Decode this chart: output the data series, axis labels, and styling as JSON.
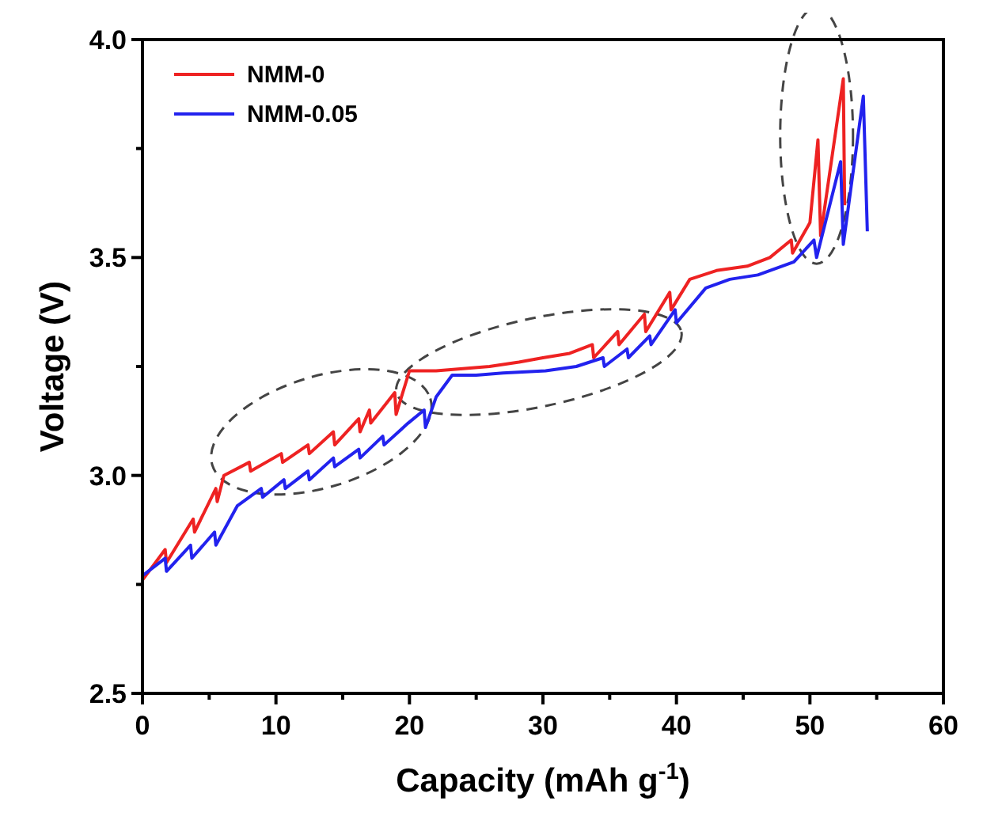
{
  "chart_data": {
    "type": "line",
    "xlabel": "Capacity (mAh g$^{-1}$)",
    "ylabel": "Voltage (V)",
    "xlim": [
      0,
      60
    ],
    "ylim": [
      2.5,
      4.0
    ],
    "xticks": [
      0,
      {
        "value": 5,
        "label": null
      },
      10,
      {
        "value": 15,
        "label": null
      },
      20,
      {
        "value": 25,
        "label": null
      },
      30,
      {
        "value": 35,
        "label": null
      },
      40,
      {
        "value": 45,
        "label": null
      },
      50,
      {
        "value": 55,
        "label": null
      },
      60
    ],
    "yticks": [
      2.5,
      {
        "value": 2.75,
        "label": null
      },
      {
        "value": 3,
        "label": "3.0"
      },
      {
        "value": 3.25,
        "label": null
      },
      3.5,
      {
        "value": 3.75,
        "label": null
      },
      {
        "value": 4,
        "label": "4.0"
      }
    ],
    "grid": false,
    "legend": "top left",
    "line_style": "solid",
    "marker": "none",
    "series": [
      {
        "name": "NMM-0",
        "color": "#ee2222",
        "x": [
          0,
          1.7,
          1.8,
          3.8,
          3.9,
          5.5,
          5.6,
          6.1,
          8,
          8.1,
          10.4,
          10.5,
          12.4,
          12.5,
          14.3,
          14.4,
          16.2,
          16.3,
          17,
          17.1,
          18.9,
          19,
          20,
          22,
          24,
          26,
          28.2,
          30,
          32,
          33.7,
          33.8,
          35.6,
          35.7,
          37.6,
          37.7,
          39.5,
          39.6,
          41,
          43,
          45.3,
          47,
          48.6,
          48.7,
          50,
          50.6,
          50.8,
          52.5,
          52.6
        ],
        "values": [
          2.76,
          2.83,
          2.8,
          2.9,
          2.87,
          2.97,
          2.94,
          3.0,
          3.03,
          3.01,
          3.05,
          3.03,
          3.07,
          3.05,
          3.1,
          3.07,
          3.13,
          3.1,
          3.15,
          3.12,
          3.19,
          3.14,
          3.24,
          3.24,
          3.245,
          3.25,
          3.26,
          3.27,
          3.28,
          3.3,
          3.27,
          3.33,
          3.3,
          3.37,
          3.33,
          3.42,
          3.38,
          3.45,
          3.47,
          3.48,
          3.5,
          3.54,
          3.51,
          3.58,
          3.77,
          3.55,
          3.91,
          3.62
        ]
      },
      {
        "name": "NMM-0.05",
        "color": "#2222ee",
        "x": [
          0,
          1.7,
          1.8,
          3.6,
          3.7,
          5.4,
          5.5,
          7.1,
          8.9,
          9,
          10.6,
          10.7,
          12.4,
          12.5,
          14.3,
          14.4,
          16.2,
          16.3,
          18,
          18.1,
          19.9,
          21.1,
          21.2,
          22,
          23.2,
          25,
          27,
          30.2,
          32.5,
          34.5,
          34.6,
          36.3,
          36.4,
          38,
          38.1,
          39.9,
          40,
          42.2,
          44,
          46.1,
          48.8,
          50.3,
          50.5,
          52.3,
          52.5,
          54,
          54.3
        ],
        "values": [
          2.77,
          2.81,
          2.78,
          2.84,
          2.81,
          2.87,
          2.84,
          2.93,
          2.97,
          2.95,
          2.99,
          2.97,
          3.01,
          2.99,
          3.04,
          3.02,
          3.06,
          3.04,
          3.09,
          3.07,
          3.12,
          3.15,
          3.11,
          3.18,
          3.23,
          3.23,
          3.235,
          3.24,
          3.25,
          3.27,
          3.25,
          3.29,
          3.27,
          3.32,
          3.3,
          3.38,
          3.35,
          3.43,
          3.45,
          3.46,
          3.49,
          3.54,
          3.5,
          3.72,
          3.53,
          3.87,
          3.56
        ]
      }
    ]
  }
}
